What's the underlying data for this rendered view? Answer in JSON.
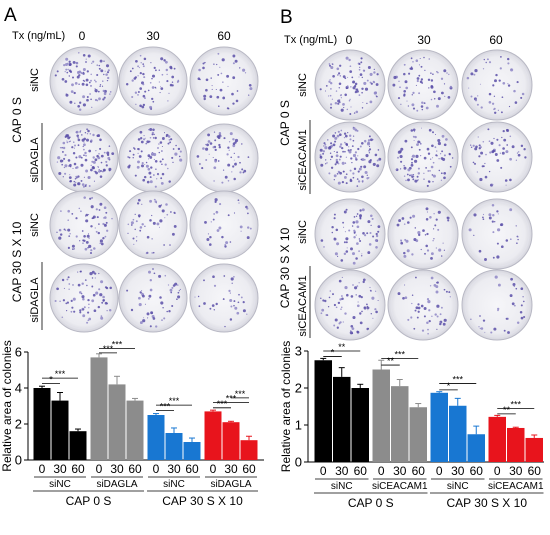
{
  "panels": [
    {
      "letter": "A",
      "tx_label": "Tx (ng/mL)",
      "doses": [
        "0",
        "30",
        "60"
      ],
      "conditions": [
        {
          "label": "CAP 0 S",
          "rows": [
            "siNC",
            "siDAGLA"
          ]
        },
        {
          "label": "CAP 30 S X 10",
          "rows": [
            "siNC",
            "siDAGLA"
          ]
        }
      ]
    },
    {
      "letter": "B",
      "tx_label": "Tx (ng/mL)",
      "doses": [
        "0",
        "30",
        "60"
      ],
      "conditions": [
        {
          "label": "CAP 0 S",
          "rows": [
            "siNC",
            "siCEACAM1"
          ]
        },
        {
          "label": "CAP 30 S X 10",
          "rows": [
            "siNC",
            "siCEACAM1"
          ]
        }
      ]
    }
  ],
  "chart_data": [
    {
      "type": "bar",
      "ylabel": "Relative area of colonies",
      "ylim": [
        0,
        6
      ],
      "yticks": [
        "0",
        "2",
        "4",
        "6"
      ],
      "categories": [
        "0",
        "30",
        "60",
        "0",
        "30",
        "60",
        "0",
        "30",
        "60",
        "0",
        "30",
        "60"
      ],
      "values": [
        4.0,
        3.3,
        1.6,
        5.7,
        4.2,
        3.3,
        2.5,
        1.5,
        1.0,
        2.7,
        2.1,
        1.1
      ],
      "errors": [
        0.1,
        0.45,
        0.12,
        0.2,
        0.45,
        0.12,
        0.08,
        0.28,
        0.22,
        0.07,
        0.05,
        0.22
      ],
      "groups": [
        {
          "label": "siNC",
          "color": "#000000"
        },
        {
          "label": "siDAGLA",
          "color": "#8c8c8c"
        },
        {
          "label": "siNC",
          "color": "#1877d2"
        },
        {
          "label": "siDAGLA",
          "color": "#e8141c"
        }
      ],
      "supergroups": [
        "CAP 0 S",
        "CAP 30 S X 10"
      ],
      "significance": [
        "*",
        "***",
        "***",
        "***",
        "***",
        "***",
        "***",
        "***",
        "***"
      ]
    },
    {
      "type": "bar",
      "ylabel": "Relative area of colonies",
      "ylim": [
        0,
        3
      ],
      "yticks": [
        "0",
        "1",
        "2",
        "3"
      ],
      "categories": [
        "0",
        "30",
        "60",
        "0",
        "30",
        "60",
        "0",
        "30",
        "60",
        "0",
        "30",
        "60"
      ],
      "values": [
        2.75,
        2.3,
        2.0,
        2.5,
        2.05,
        1.48,
        1.87,
        1.52,
        0.75,
        1.22,
        0.92,
        0.65
      ],
      "errors": [
        0.05,
        0.25,
        0.1,
        0.25,
        0.18,
        0.1,
        0.03,
        0.2,
        0.22,
        0.04,
        0.02,
        0.08
      ],
      "groups": [
        {
          "label": "siNC",
          "color": "#000000"
        },
        {
          "label": "siCEACAM1",
          "color": "#8c8c8c"
        },
        {
          "label": "siNC",
          "color": "#1877d2"
        },
        {
          "label": "siCEACAM1",
          "color": "#e8141c"
        }
      ],
      "supergroups": [
        "CAP 0 S",
        "CAP 30 S X 10"
      ],
      "significance": [
        "*",
        "**",
        "**",
        "***",
        "*",
        "***",
        "**",
        "***"
      ]
    }
  ]
}
